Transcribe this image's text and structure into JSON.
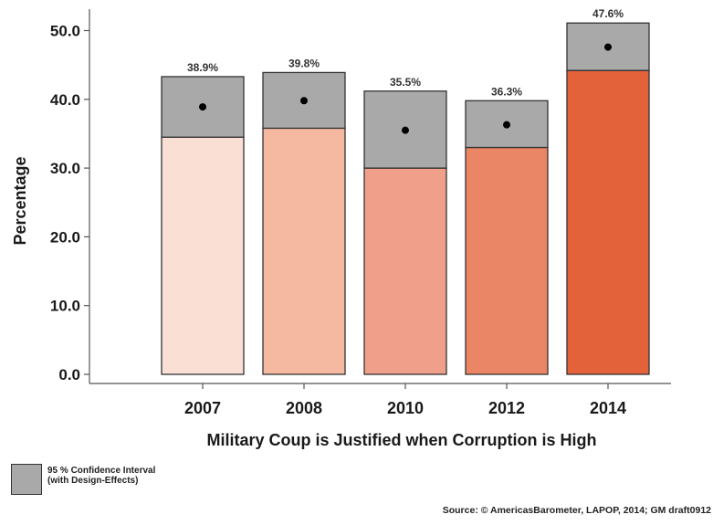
{
  "chart_data": {
    "type": "bar",
    "xlabel": "Military Coup is Justified when Corruption is High",
    "ylabel": "Percentage",
    "ylim": [
      0,
      52
    ],
    "yticks": [
      "0.0",
      "10.0",
      "20.0",
      "30.0",
      "40.0",
      "50.0"
    ],
    "ytick_values": [
      0,
      10,
      20,
      30,
      40,
      50
    ],
    "categories": [
      "2007",
      "2008",
      "2010",
      "2012",
      "2014"
    ],
    "values": [
      38.9,
      39.8,
      35.5,
      36.3,
      47.6
    ],
    "value_labels": [
      "38.9%",
      "39.8%",
      "35.5%",
      "36.3%",
      "47.6%"
    ],
    "ci_lower": [
      34.5,
      35.8,
      30.0,
      33.0,
      44.2
    ],
    "ci_upper": [
      43.3,
      43.9,
      41.2,
      39.8,
      51.1
    ],
    "bar_colors": [
      "#fadfd4",
      "#f5b8a1",
      "#f0a08a",
      "#ea8665",
      "#e4623a"
    ],
    "ci_color": "#a9a9a9",
    "grid": false,
    "legend": {
      "label_line1": "95 % Confidence Interval",
      "label_line2": "(with Design-Effects)",
      "placement": "bottom-left"
    },
    "source": "Source: © AmericasBarometer, LAPOP, 2014; GM draft0912"
  }
}
